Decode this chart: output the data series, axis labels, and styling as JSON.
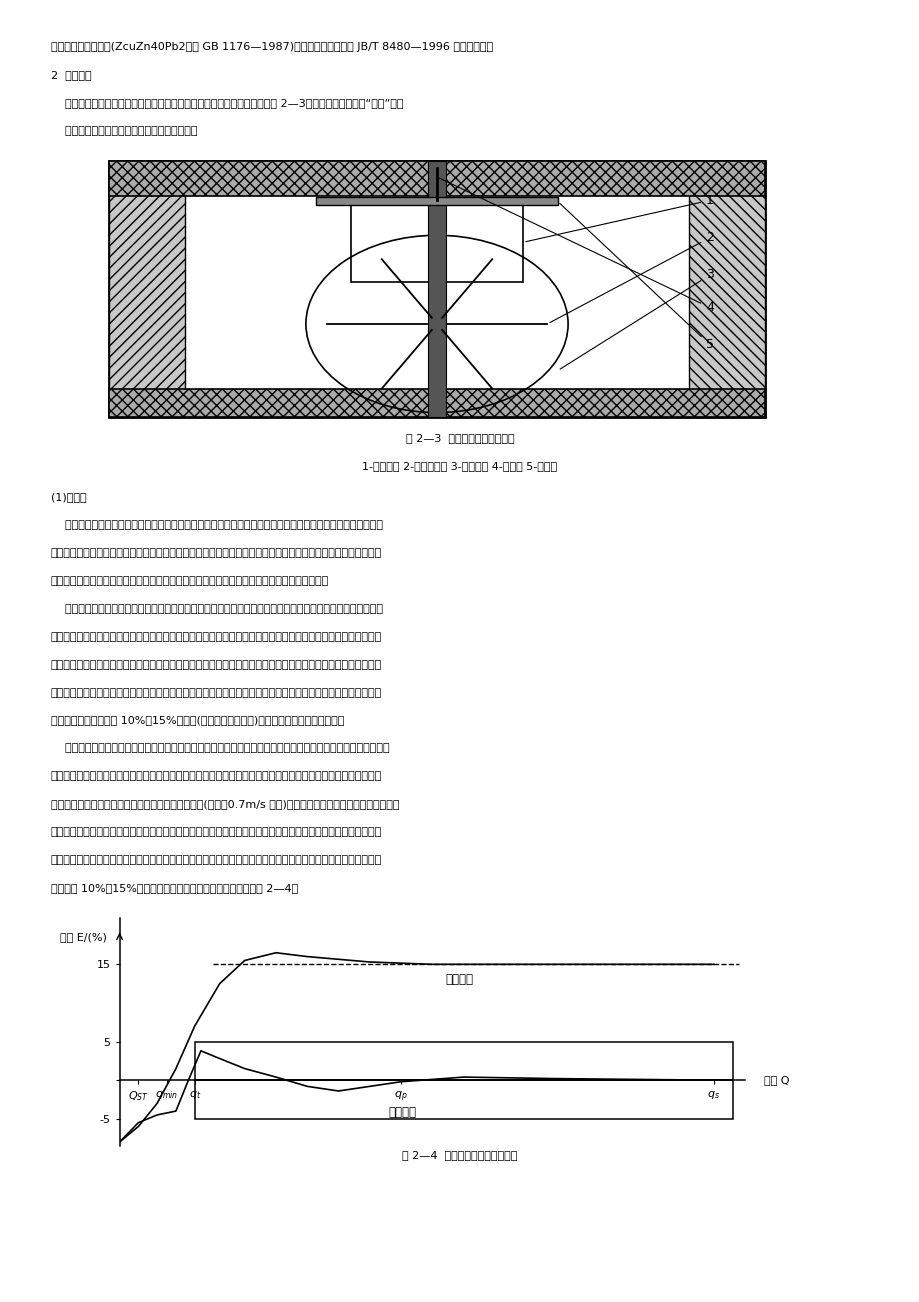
{
  "background_color": "#ffffff",
  "page_width": 9.2,
  "page_height": 13.02,
  "top_line1": "一般采用铸造醓黄铜(ZcuZn40Pb2，见 GB 1176—1987)。表玻璃应采用符合 JB/T 8480—1996 的钓化玻璃。",
  "top_line2": "2  计量机构",
  "top_line3": "    计量机构主要由齿轮盒、叶轮盒、整体叶轮、顶尖、调节板等组成，见图 2—3。计量机构是水表的“心脏”，它",
  "top_line4": "    对水表的计量性能和耕用性起着关键的作用。",
  "figure_caption_23": "图 2—3  旋翅式水表计量机构图",
  "figure_labels_23": "1-齿轮盒； 2-整体叶轮； 3-叶轮盒； 4-顶尖； 5-调节板",
  "section_heading": "(1)齿轮盒",
  "para1": "    计数器置于齿轮盒中，与齿轮盒上部的内孔相配合。齿轮盒下部有一凸台，与叶轮盒相配合。齿轮盒在旋翅多",
  "para2": "流水表的机芯中，起着承下启上的作用。为此，要求齿轮盒上部内孔与下部凸台间应有良好的同轴度。另外，齿轮",
  "para3": "盒外壁应有定位线或底部有定位键，以保证与叶轮盒配合时的定位要求，从而确保性能的稳定。",
  "para4": "    旋翅式水表的齿轮盒底部一般均有三条左右的固定筋，其主要作用是，当水表在大流量运转时，对叶轮旋转起",
  "para5": "阻尼作用，以改善水表在大流量区域的性能曲线。因为当很小的流量通过水表时，其流速很低，水流的动能极小，",
  "para6": "不足以克服叶轮的惯性，故叶轮未转动。待稍加大流速，叶轮虽转动，但不能准确计量，故最小流量以下的流量范",
  "para7": "围水表呈偏慢的现象。此后逐渐加大流速，水表向快的趋势发展，如果没有齿轮盒上的筋加以阻尼，则这种趋势将",
  "para8": "会持续下去，直至偏快 10%～15%左右后(与有筋阻尼相比较)，其性能曲线才会趋向平稳。",
  "para9": "    水流从叶轮盒进水孔流人后，一方面驱动叶轮旋转，另一方面水流本身呈螺旋形上升，并从叶轮盒出水孔排出。",
  "para10": "在小流量时，因水流流速低，叶轮上平面与齿轮盒筋的间隙处的水流呈层流状态，水的粘性作用占主要地位，齿轮",
  "para11": "盒上的筋对叶轮转速无影响。当流速大到一定程度时(一般为0.7m/s 左右)，间隙处水流从层流过渡到湍流，造成",
  "para12": "齿轮盒若干条筋的下方产生旋渦，使叶轮转速有所减低。同时，因流速增大，在叶轮盒内呈螺旋上升的水流，有一",
  "para13": "部分冲到齿轮盒筋反射回来，其方向却与叶轮旋转方向相反，故又使叶轮转速降低，使水表不至于出现没有齿轮盒",
  "para14": "筋那样快 10%～15%后才使误差趋向平稳的现象。变化示意见图 2—4。",
  "chart_ylabel": "误差 E/(%)",
  "chart_xlabel": "流量 Q",
  "curve_no_damping_label": "无筋阻尼",
  "curve_with_damping_label": "有筋阻尼",
  "figure_caption_24": "图 2—4  齿轮筋对性能曲线的影响"
}
